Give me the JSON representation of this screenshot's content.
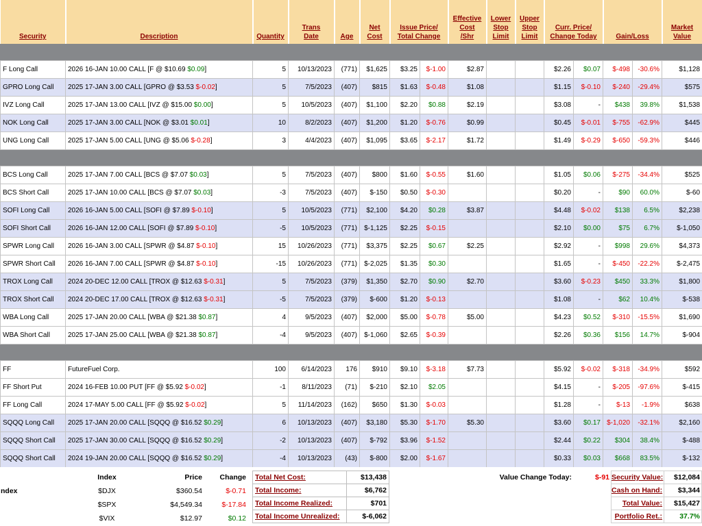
{
  "header": [
    {
      "id": "security",
      "lines": [
        "Security"
      ]
    },
    {
      "id": "description",
      "lines": [
        "Description"
      ]
    },
    {
      "id": "quantity",
      "lines": [
        "Quantity"
      ]
    },
    {
      "id": "trans-date",
      "lines": [
        "Trans",
        "Date"
      ]
    },
    {
      "id": "age",
      "lines": [
        "Age"
      ]
    },
    {
      "id": "net-cost",
      "lines": [
        "Net",
        "Cost"
      ]
    },
    {
      "id": "issue-price-total-change",
      "lines": [
        "Issue Price/",
        "Total Change"
      ],
      "span": 2
    },
    {
      "id": "effective-cost-shr",
      "lines": [
        "Effective",
        "Cost",
        "/Shr"
      ]
    },
    {
      "id": "lower-stop-limit",
      "lines": [
        "Lower",
        "Stop",
        "Limit"
      ]
    },
    {
      "id": "upper-stop-limit",
      "lines": [
        "Upper",
        "Stop",
        "Limit"
      ]
    },
    {
      "id": "curr-price-change-today",
      "lines": [
        "Curr. Price/",
        "Change Today"
      ],
      "span": 2
    },
    {
      "id": "gain-loss",
      "lines": [
        "Gain/Loss"
      ],
      "span": 2
    },
    {
      "id": "market-value",
      "lines": [
        "Market",
        "Value"
      ]
    }
  ],
  "groups": [
    {
      "rows": [
        {
          "sec": "F Long Call",
          "desc": "2026 16-JAN 10.00 CALL [F @ $10.69",
          "chg": "$0.09",
          "qty": "5",
          "date": "10/13/2023",
          "age": "(771)",
          "net": "$1,625",
          "issue": "$3.25",
          "tchg": "$-1.00",
          "eff": "$2.87",
          "curr": "$2.26",
          "cchg": "$0.07",
          "gain": "$-498",
          "pct": "-30.6%",
          "mv": "$1,128",
          "band": "a"
        },
        {
          "sec": "GPRO Long Call",
          "desc": "2025 17-JAN 3.00 CALL [GPRO @ $3.53",
          "chg": "$-0.02",
          "qty": "5",
          "date": "7/5/2023",
          "age": "(407)",
          "net": "$815",
          "issue": "$1.63",
          "tchg": "$-0.48",
          "eff": "$1.08",
          "curr": "$1.15",
          "cchg": "$-0.10",
          "gain": "$-240",
          "pct": "-29.4%",
          "mv": "$575",
          "band": "b"
        },
        {
          "sec": "IVZ Long Call",
          "desc": "2025 17-JAN 13.00 CALL [IVZ @ $15.00",
          "chg": "$0.00",
          "qty": "5",
          "date": "10/5/2023",
          "age": "(407)",
          "net": "$1,100",
          "issue": "$2.20",
          "tchg": "$0.88",
          "eff": "$2.19",
          "curr": "$3.08",
          "cchg": "-",
          "gain": "$438",
          "pct": "39.8%",
          "mv": "$1,538",
          "band": "a"
        },
        {
          "sec": "NOK Long Call",
          "desc": "2025 17-JAN 3.00 CALL [NOK @ $3.01",
          "chg": "$0.01",
          "qty": "10",
          "date": "8/2/2023",
          "age": "(407)",
          "net": "$1,200",
          "issue": "$1.20",
          "tchg": "$-0.76",
          "eff": "$0.99",
          "curr": "$0.45",
          "cchg": "$-0.01",
          "gain": "$-755",
          "pct": "-62.9%",
          "mv": "$445",
          "band": "b"
        },
        {
          "sec": "UNG Long Call",
          "desc": "2025 17-JAN 5.00 CALL [UNG @ $5.06",
          "chg": "$-0.28",
          "qty": "3",
          "date": "4/4/2023",
          "age": "(407)",
          "net": "$1,095",
          "issue": "$3.65",
          "tchg": "$-2.17",
          "eff": "$1.72",
          "curr": "$1.49",
          "cchg": "$-0.29",
          "gain": "$-650",
          "pct": "-59.3%",
          "mv": "$446",
          "band": "a"
        }
      ]
    },
    {
      "rows": [
        {
          "sec": "BCS Long Call",
          "desc": "2025 17-JAN 7.00 CALL [BCS @ $7.07",
          "chg": "$0.03",
          "qty": "5",
          "date": "7/5/2023",
          "age": "(407)",
          "net": "$800",
          "issue": "$1.60",
          "tchg": "$-0.55",
          "eff": "$1.60",
          "curr": "$1.05",
          "cchg": "$0.06",
          "gain": "$-275",
          "pct": "-34.4%",
          "mv": "$525",
          "band": "a"
        },
        {
          "sec": "BCS Short Call",
          "desc": "2025 17-JAN 10.00 CALL [BCS @ $7.07",
          "chg": "$0.03",
          "qty": "-3",
          "date": "7/5/2023",
          "age": "(407)",
          "net": "$-150",
          "issue": "$0.50",
          "tchg": "$-0.30",
          "eff": "",
          "curr": "$0.20",
          "cchg": "-",
          "gain": "$90",
          "pct": "60.0%",
          "mv": "$-60",
          "band": "a"
        },
        {
          "sec": "SOFI Long Call",
          "desc": "2026 16-JAN 5.00 CALL [SOFI @ $7.89",
          "chg": "$-0.10",
          "qty": "5",
          "date": "10/5/2023",
          "age": "(771)",
          "net": "$2,100",
          "issue": "$4.20",
          "tchg": "$0.28",
          "eff": "$3.87",
          "curr": "$4.48",
          "cchg": "$-0.02",
          "gain": "$138",
          "pct": "6.5%",
          "mv": "$2,238",
          "band": "b"
        },
        {
          "sec": "SOFI Short Call",
          "desc": "2026 16-JAN 12.00 CALL [SOFI @ $7.89",
          "chg": "$-0.10",
          "qty": "-5",
          "date": "10/5/2023",
          "age": "(771)",
          "net": "$-1,125",
          "issue": "$2.25",
          "tchg": "$-0.15",
          "eff": "",
          "curr": "$2.10",
          "cchg": "$0.00",
          "gain": "$75",
          "pct": "6.7%",
          "mv": "$-1,050",
          "band": "b"
        },
        {
          "sec": "SPWR Long Call",
          "desc": "2026 16-JAN 3.00 CALL [SPWR @ $4.87",
          "chg": "$-0.10",
          "qty": "15",
          "date": "10/26/2023",
          "age": "(771)",
          "net": "$3,375",
          "issue": "$2.25",
          "tchg": "$0.67",
          "eff": "$2.25",
          "curr": "$2.92",
          "cchg": "-",
          "gain": "$998",
          "pct": "29.6%",
          "mv": "$4,373",
          "band": "a"
        },
        {
          "sec": "SPWR Short Call",
          "desc": "2026 16-JAN 7.00 CALL [SPWR @ $4.87",
          "chg": "$-0.10",
          "qty": "-15",
          "date": "10/26/2023",
          "age": "(771)",
          "net": "$-2,025",
          "issue": "$1.35",
          "tchg": "$0.30",
          "eff": "",
          "curr": "$1.65",
          "cchg": "-",
          "gain": "$-450",
          "pct": "-22.2%",
          "mv": "$-2,475",
          "band": "a"
        },
        {
          "sec": "TROX Long Call",
          "desc": "2024 20-DEC 12.00 CALL [TROX @ $12.63",
          "chg": "$-0.31",
          "qty": "5",
          "date": "7/5/2023",
          "age": "(379)",
          "net": "$1,350",
          "issue": "$2.70",
          "tchg": "$0.90",
          "eff": "$2.70",
          "curr": "$3.60",
          "cchg": "$-0.23",
          "gain": "$450",
          "pct": "33.3%",
          "mv": "$1,800",
          "band": "b"
        },
        {
          "sec": "TROX Short Call",
          "desc": "2024 20-DEC 17.00 CALL [TROX @ $12.63",
          "chg": "$-0.31",
          "qty": "-5",
          "date": "7/5/2023",
          "age": "(379)",
          "net": "$-600",
          "issue": "$1.20",
          "tchg": "$-0.13",
          "eff": "",
          "curr": "$1.08",
          "cchg": "-",
          "gain": "$62",
          "pct": "10.4%",
          "mv": "$-538",
          "band": "b"
        },
        {
          "sec": "WBA Long Call",
          "desc": "2025 17-JAN 20.00 CALL [WBA @ $21.38",
          "chg": "$0.87",
          "qty": "4",
          "date": "9/5/2023",
          "age": "(407)",
          "net": "$2,000",
          "issue": "$5.00",
          "tchg": "$-0.78",
          "eff": "$5.00",
          "curr": "$4.23",
          "cchg": "$0.52",
          "gain": "$-310",
          "pct": "-15.5%",
          "mv": "$1,690",
          "band": "a"
        },
        {
          "sec": "WBA Short Call",
          "desc": "2025 17-JAN 25.00 CALL [WBA @ $21.38",
          "chg": "$0.87",
          "qty": "-4",
          "date": "9/5/2023",
          "age": "(407)",
          "net": "$-1,060",
          "issue": "$2.65",
          "tchg": "$-0.39",
          "eff": "",
          "curr": "$2.26",
          "cchg": "$0.36",
          "gain": "$156",
          "pct": "14.7%",
          "mv": "$-904",
          "band": "a"
        }
      ]
    },
    {
      "rows": [
        {
          "sec": "FF",
          "desc": "FutureFuel Corp.",
          "chg": "",
          "qty": "100",
          "date": "6/14/2023",
          "age": "176",
          "net": "$910",
          "issue": "$9.10",
          "tchg": "$-3.18",
          "eff": "$7.73",
          "curr": "$5.92",
          "cchg": "$-0.02",
          "gain": "$-318",
          "pct": "-34.9%",
          "mv": "$592",
          "band": "a"
        },
        {
          "sec": "FF Short Put",
          "desc": "2024 16-FEB 10.00 PUT [FF @ $5.92",
          "chg": "$-0.02",
          "qty": "-1",
          "date": "8/11/2023",
          "age": "(71)",
          "net": "$-210",
          "issue": "$2.10",
          "tchg": "$2.05",
          "eff": "",
          "curr": "$4.15",
          "cchg": "-",
          "gain": "$-205",
          "pct": "-97.6%",
          "mv": "$-415",
          "band": "a"
        },
        {
          "sec": "FF Long Call",
          "desc": "2024 17-MAY 5.00 CALL [FF @ $5.92",
          "chg": "$-0.02",
          "qty": "5",
          "date": "11/14/2023",
          "age": "(162)",
          "net": "$650",
          "issue": "$1.30",
          "tchg": "$-0.03",
          "eff": "",
          "curr": "$1.28",
          "cchg": "-",
          "gain": "$-13",
          "pct": "-1.9%",
          "mv": "$638",
          "band": "a"
        },
        {
          "sec": "SQQQ Long Call",
          "desc": "2025 17-JAN 20.00 CALL [SQQQ @ $16.52",
          "chg": "$0.29",
          "qty": "6",
          "date": "10/13/2023",
          "age": "(407)",
          "net": "$3,180",
          "issue": "$5.30",
          "tchg": "$-1.70",
          "eff": "$5.30",
          "curr": "$3.60",
          "cchg": "$0.17",
          "gain": "$-1,020",
          "pct": "-32.1%",
          "mv": "$2,160",
          "band": "b"
        },
        {
          "sec": "SQQQ Short Call",
          "desc": "2025 17-JAN 30.00 CALL [SQQQ @ $16.52",
          "chg": "$0.29",
          "qty": "-2",
          "date": "10/13/2023",
          "age": "(407)",
          "net": "$-792",
          "issue": "$3.96",
          "tchg": "$-1.52",
          "eff": "",
          "curr": "$2.44",
          "cchg": "$0.22",
          "gain": "$304",
          "pct": "38.4%",
          "mv": "$-488",
          "band": "b"
        },
        {
          "sec": "SQQQ Short Call",
          "desc": "2024 19-JAN 20.00 CALL [SQQQ @ $16.52",
          "chg": "$0.29",
          "qty": "-4",
          "date": "10/13/2023",
          "age": "(43)",
          "net": "$-800",
          "issue": "$2.00",
          "tchg": "$-1.67",
          "eff": "",
          "curr": "$0.33",
          "cchg": "$0.03",
          "gain": "$668",
          "pct": "83.5%",
          "mv": "$-132",
          "band": "b"
        }
      ]
    }
  ],
  "footer": {
    "index_fragment": "ndex",
    "index_table": {
      "headers": [
        "Index",
        "Price",
        "Change"
      ],
      "rows": [
        [
          "$DJX",
          "$360.54",
          "$-0.71"
        ],
        [
          "$SPX",
          "$4,549.34",
          "$-17.84"
        ],
        [
          "$VIX",
          "$12.97",
          "$0.12"
        ]
      ]
    },
    "totals": [
      {
        "label": "Total Net Cost:",
        "value": "$13,438"
      },
      {
        "label": "Total Income:",
        "value": "$6,762"
      },
      {
        "label": "Total Income Realized:",
        "value": "$701"
      },
      {
        "label": "Total Income Unrealized:",
        "value": "$-6,062"
      }
    ],
    "value_change_label": "Value Change Today:",
    "value_change": "$-91",
    "summary": [
      {
        "label": "Security Value:",
        "value": "$12,084",
        "colored": false
      },
      {
        "label": "Cash on Hand:",
        "value": "$3,344",
        "colored": false
      },
      {
        "label": "Total Value:",
        "value": "$15,427",
        "colored": false
      },
      {
        "label": "Portfolio Ret.:",
        "value": "37.7%",
        "colored": true
      }
    ]
  },
  "colors": {
    "header_bg": "#F9DCA2",
    "header_text": "#8B0000",
    "band_alt": "#DCE0F5",
    "negative": "#E60000",
    "positive": "#007A00",
    "page_bg": "#86888B"
  }
}
